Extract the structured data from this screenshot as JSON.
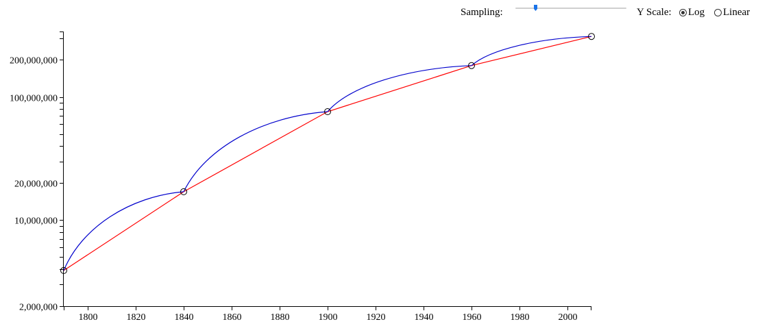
{
  "controls": {
    "sampling_label": "Sampling:",
    "sampling_value": 0.17,
    "slider_color": "#1a73e8",
    "y_scale_label": "Y Scale:",
    "y_scale_options": [
      "Log",
      "Linear"
    ],
    "y_scale_selected": "Log"
  },
  "chart_data": {
    "type": "line",
    "title": "",
    "xlabel": "",
    "ylabel": "",
    "x_ticks": [
      1800,
      1820,
      1840,
      1860,
      1880,
      1900,
      1920,
      1940,
      1960,
      1980,
      2000
    ],
    "x_tick_labels": [
      "1800",
      "1820",
      "1840",
      "1860",
      "1880",
      "1900",
      "1920",
      "1940",
      "1960",
      "1980",
      "2000"
    ],
    "y_ticks": [
      2000000,
      10000000,
      20000000,
      100000000,
      200000000
    ],
    "y_tick_labels": [
      "2,000,000",
      "10,000,000",
      "20,000,000",
      "100,000,000",
      "200,000,000"
    ],
    "xlim": [
      1790,
      2010
    ],
    "ylim": [
      2000000,
      340000000
    ],
    "y_scale": "log",
    "grid": false,
    "points": {
      "x": [
        1790,
        1840,
        1900,
        1960,
        2010
      ],
      "y": [
        3900000,
        17000000,
        76000000,
        180000000,
        310000000
      ]
    },
    "series": [
      {
        "color": "#ff0000",
        "style": "linear",
        "x": [
          1790,
          1840,
          1900,
          1960,
          2010
        ],
        "y": [
          3900000,
          17000000,
          76000000,
          180000000,
          310000000
        ]
      },
      {
        "color": "#0000cc",
        "style": "smooth",
        "x": [
          1790,
          1840,
          1900,
          1960,
          2010
        ],
        "y": [
          3900000,
          17000000,
          76000000,
          180000000,
          310000000
        ]
      }
    ]
  }
}
